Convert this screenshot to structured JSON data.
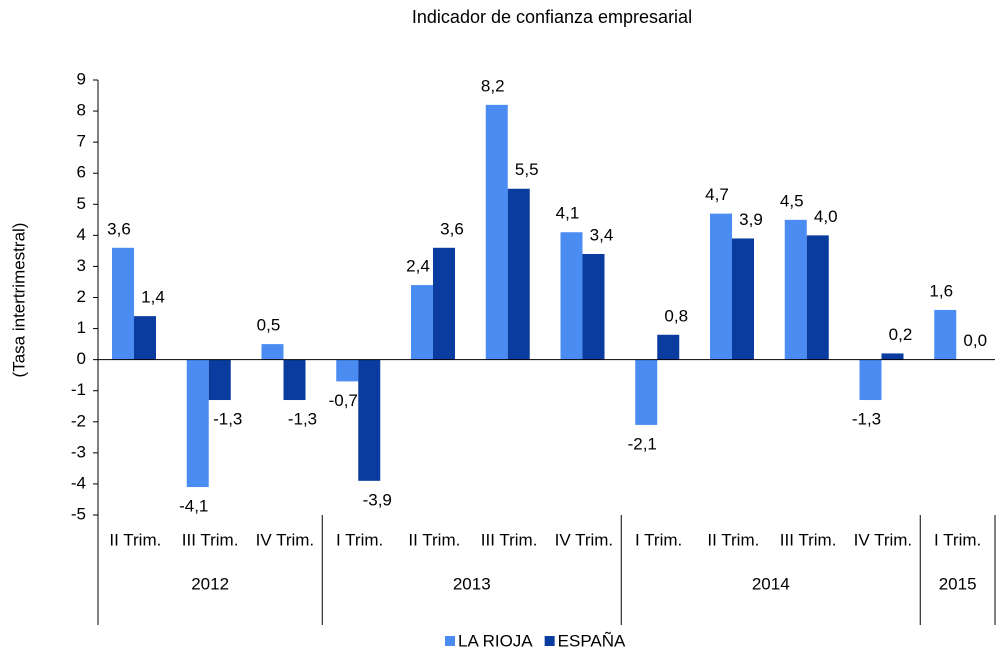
{
  "chart_data": {
    "type": "bar",
    "title": "Indicador de confianza empresarial",
    "y_label": "(Tasa intertrimestral)",
    "groups": [
      {
        "name": "2012",
        "categories": [
          "II Trim.",
          "III Trim.",
          "IV Trim."
        ]
      },
      {
        "name": "2013",
        "categories": [
          "I Trim.",
          "II Trim.",
          "III Trim.",
          "IV Trim."
        ]
      },
      {
        "name": "2014",
        "categories": [
          "I Trim.",
          "II Trim.",
          "III Trim.",
          "IV Trim."
        ]
      },
      {
        "name": "2015",
        "categories": [
          "I Trim."
        ]
      }
    ],
    "series": [
      {
        "name": "LA RIOJA",
        "color": "#4a8cf2",
        "values": [
          3.6,
          -4.1,
          0.5,
          -0.7,
          2.4,
          8.2,
          4.1,
          -2.1,
          4.7,
          4.5,
          -1.3,
          1.6
        ],
        "value_labels": [
          "3,6",
          "-4,1",
          "0,5",
          "-0,7",
          "2,4",
          "8,2",
          "4,1",
          "-2,1",
          "4,7",
          "4,5",
          "-1,3",
          "1,6"
        ]
      },
      {
        "name": "ESPAÑA",
        "color": "#0a3b9e",
        "values": [
          1.4,
          -1.3,
          -1.3,
          -3.9,
          3.6,
          5.5,
          3.4,
          0.8,
          3.9,
          4.0,
          0.2,
          0.0
        ],
        "value_labels": [
          "1,4",
          "-1,3",
          "-1,3",
          "-3,9",
          "3,6",
          "5,5",
          "3,4",
          "0,8",
          "3,9",
          "4,0",
          "0,2",
          "0,0"
        ]
      }
    ],
    "ylim": [
      -5,
      9
    ],
    "yticks": [
      -5,
      -4,
      -3,
      -2,
      -1,
      0,
      1,
      2,
      3,
      4,
      5,
      6,
      7,
      8,
      9
    ],
    "legend": "bottom"
  }
}
